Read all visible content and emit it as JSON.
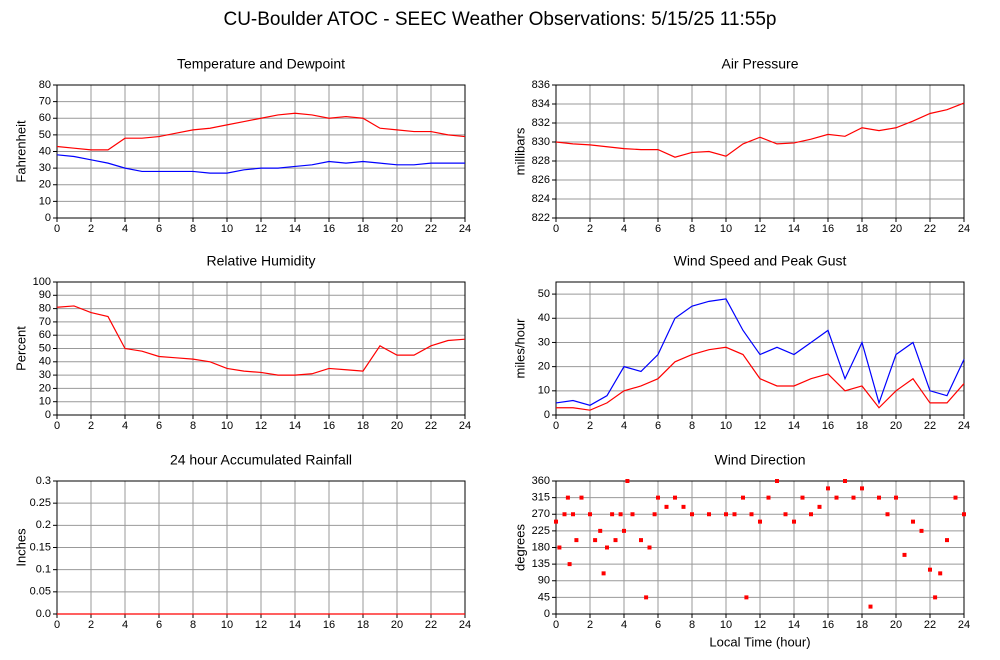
{
  "title": "CU-Boulder ATOC - SEEC Weather Observations: 5/15/25 11:55p",
  "chart_data": [
    {
      "type": "line",
      "title": "Temperature and Dewpoint",
      "ylabel": "Fahrenheit",
      "x": [
        0,
        1,
        2,
        3,
        4,
        5,
        6,
        7,
        8,
        9,
        10,
        11,
        12,
        13,
        14,
        15,
        16,
        17,
        18,
        19,
        20,
        21,
        22,
        23,
        24
      ],
      "series": [
        {
          "color": "#ff0000",
          "values": [
            43,
            42,
            41,
            41,
            48,
            48,
            49,
            51,
            53,
            54,
            56,
            58,
            60,
            62,
            63,
            62,
            60,
            61,
            60,
            54,
            53,
            52,
            52,
            50,
            49
          ]
        },
        {
          "color": "#0000ff",
          "values": [
            38,
            37,
            35,
            33,
            30,
            28,
            28,
            28,
            28,
            27,
            27,
            29,
            30,
            30,
            31,
            32,
            34,
            33,
            34,
            33,
            32,
            32,
            33,
            33,
            33
          ]
        }
      ],
      "xlim": [
        0,
        24
      ],
      "xticks": [
        0,
        2,
        4,
        6,
        8,
        10,
        12,
        14,
        16,
        18,
        20,
        22,
        24
      ],
      "ylim": [
        0,
        80
      ],
      "yticks": [
        0,
        10,
        20,
        30,
        40,
        50,
        60,
        70,
        80
      ],
      "grid": true
    },
    {
      "type": "line",
      "title": "Air Pressure",
      "ylabel": "millibars",
      "x": [
        0,
        1,
        2,
        3,
        4,
        5,
        6,
        7,
        8,
        9,
        10,
        11,
        12,
        13,
        14,
        15,
        16,
        17,
        18,
        19,
        20,
        21,
        22,
        23,
        24
      ],
      "series": [
        {
          "color": "#ff0000",
          "values": [
            830,
            829.8,
            829.7,
            829.5,
            829.3,
            829.2,
            829.2,
            828.4,
            828.9,
            829,
            828.5,
            829.8,
            830.5,
            829.8,
            829.9,
            830.3,
            830.8,
            830.6,
            831.5,
            831.2,
            831.5,
            832.2,
            833,
            833.4,
            834.1
          ]
        }
      ],
      "xlim": [
        0,
        24
      ],
      "xticks": [
        0,
        2,
        4,
        6,
        8,
        10,
        12,
        14,
        16,
        18,
        20,
        22,
        24
      ],
      "ylim": [
        822,
        836
      ],
      "yticks": [
        822,
        824,
        826,
        828,
        830,
        832,
        834,
        836
      ],
      "grid": true
    },
    {
      "type": "line",
      "title": "Relative Humidity",
      "ylabel": "Percent",
      "x": [
        0,
        1,
        2,
        3,
        4,
        5,
        6,
        7,
        8,
        9,
        10,
        11,
        12,
        13,
        14,
        15,
        16,
        17,
        18,
        19,
        20,
        21,
        22,
        23,
        24
      ],
      "series": [
        {
          "color": "#ff0000",
          "values": [
            81,
            82,
            77,
            74,
            50,
            48,
            44,
            43,
            42,
            40,
            35,
            33,
            32,
            30,
            30,
            31,
            35,
            34,
            33,
            52,
            45,
            45,
            52,
            56,
            57
          ]
        }
      ],
      "xlim": [
        0,
        24
      ],
      "xticks": [
        0,
        2,
        4,
        6,
        8,
        10,
        12,
        14,
        16,
        18,
        20,
        22,
        24
      ],
      "ylim": [
        0,
        100
      ],
      "yticks": [
        0,
        10,
        20,
        30,
        40,
        50,
        60,
        70,
        80,
        90,
        100
      ],
      "grid": true
    },
    {
      "type": "line",
      "title": "Wind Speed and Peak Gust",
      "ylabel": "miles/hour",
      "x": [
        0,
        1,
        2,
        3,
        4,
        5,
        6,
        7,
        8,
        9,
        10,
        11,
        12,
        13,
        14,
        15,
        16,
        17,
        18,
        19,
        20,
        21,
        22,
        23,
        24
      ],
      "series": [
        {
          "color": "#0000ff",
          "values": [
            5,
            6,
            4,
            8,
            20,
            18,
            25,
            40,
            45,
            47,
            48,
            35,
            25,
            28,
            25,
            30,
            35,
            15,
            30,
            5,
            25,
            30,
            10,
            8,
            23
          ]
        },
        {
          "color": "#ff0000",
          "values": [
            3,
            3,
            2,
            5,
            10,
            12,
            15,
            22,
            25,
            27,
            28,
            25,
            15,
            12,
            12,
            15,
            17,
            10,
            12,
            3,
            10,
            15,
            5,
            5,
            13
          ]
        }
      ],
      "xlim": [
        0,
        24
      ],
      "xticks": [
        0,
        2,
        4,
        6,
        8,
        10,
        12,
        14,
        16,
        18,
        20,
        22,
        24
      ],
      "ylim": [
        0,
        55
      ],
      "yticks": [
        0,
        10,
        20,
        30,
        40,
        50
      ],
      "grid": true
    },
    {
      "type": "line",
      "title": "24 hour Accumulated Rainfall",
      "ylabel": "Inches",
      "x": [
        0,
        1,
        2,
        3,
        4,
        5,
        6,
        7,
        8,
        9,
        10,
        11,
        12,
        13,
        14,
        15,
        16,
        17,
        18,
        19,
        20,
        21,
        22,
        23,
        24
      ],
      "series": [
        {
          "color": "#ff0000",
          "values": [
            0,
            0,
            0,
            0,
            0,
            0,
            0,
            0,
            0,
            0,
            0,
            0,
            0,
            0,
            0,
            0,
            0,
            0,
            0,
            0,
            0,
            0,
            0,
            0,
            0
          ]
        }
      ],
      "xlim": [
        0,
        24
      ],
      "xticks": [
        0,
        2,
        4,
        6,
        8,
        10,
        12,
        14,
        16,
        18,
        20,
        22,
        24
      ],
      "ylim": [
        0,
        0.3
      ],
      "yticks": [
        {
          "value": 0,
          "label": "0.0"
        },
        0.05,
        0.1,
        0.15,
        0.2,
        0.25,
        0.3
      ],
      "grid": true
    },
    {
      "type": "scatter",
      "title": "Wind Direction",
      "ylabel": "degrees",
      "xlabel": "Local Time (hour)",
      "x": [
        0,
        0.2,
        0.5,
        0.7,
        0.8,
        1,
        1.2,
        1.5,
        2,
        2.3,
        2.6,
        2.8,
        3,
        3.3,
        3.5,
        3.8,
        4,
        4.2,
        4.5,
        5,
        5.3,
        5.5,
        5.8,
        6,
        6.5,
        7,
        7.5,
        8,
        9,
        10,
        10.5,
        11,
        11.2,
        11.5,
        12,
        12.5,
        13,
        13.5,
        14,
        14.5,
        15,
        15.5,
        16,
        16.5,
        17,
        17.5,
        18,
        18.5,
        19,
        19.5,
        20,
        20.5,
        21,
        21.5,
        22,
        22.3,
        22.6,
        23,
        23.5,
        24
      ],
      "series": [
        {
          "color": "#ff0000",
          "values": [
            250,
            180,
            270,
            315,
            135,
            270,
            200,
            315,
            270,
            200,
            225,
            110,
            180,
            270,
            200,
            270,
            225,
            360,
            270,
            200,
            45,
            180,
            270,
            315,
            290,
            315,
            290,
            270,
            270,
            270,
            270,
            315,
            45,
            270,
            250,
            315,
            360,
            270,
            250,
            315,
            270,
            290,
            340,
            315,
            360,
            315,
            340,
            20,
            315,
            270,
            315,
            160,
            250,
            225,
            120,
            45,
            110,
            200,
            315,
            270
          ]
        }
      ],
      "xlim": [
        0,
        24
      ],
      "xticks": [
        0,
        2,
        4,
        6,
        8,
        10,
        12,
        14,
        16,
        18,
        20,
        22,
        24
      ],
      "ylim": [
        0,
        360
      ],
      "yticks": [
        0,
        45,
        90,
        135,
        180,
        225,
        270,
        315,
        360
      ],
      "grid": true
    }
  ]
}
